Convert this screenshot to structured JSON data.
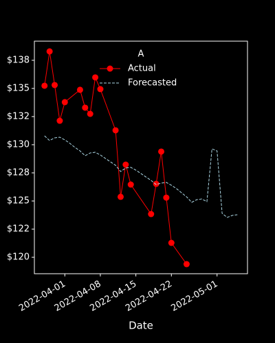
{
  "chart_data": {
    "type": "line",
    "x_label": "Date",
    "legend_title": "A",
    "legend": "upper center",
    "xlim": [
      "2022-03-26",
      "2022-05-07"
    ],
    "xticks": [
      "2022-04-01",
      "2022-04-08",
      "2022-04-15",
      "2022-04-22",
      "2022-05-01"
    ],
    "ylim": [
      118.54,
      139.2
    ],
    "yticks": [
      {
        "value": 120,
        "label": "$120"
      },
      {
        "value": 122.5,
        "label": "$122"
      },
      {
        "value": 125,
        "label": "$125"
      },
      {
        "value": 127.5,
        "label": "$128"
      },
      {
        "value": 130,
        "label": "$130"
      },
      {
        "value": 132.5,
        "label": "$132"
      },
      {
        "value": 135,
        "label": "$135"
      },
      {
        "value": 137.5,
        "label": "$138"
      }
    ],
    "series": [
      {
        "name": "Actual",
        "color": "#ff0000",
        "marker": true,
        "dashed": false,
        "x": [
          "2022-03-28",
          "2022-03-29",
          "2022-03-30",
          "2022-03-31",
          "2022-04-01",
          "2022-04-04",
          "2022-04-05",
          "2022-04-06",
          "2022-04-07",
          "2022-04-08",
          "2022-04-11",
          "2022-04-12",
          "2022-04-13",
          "2022-04-14",
          "2022-04-18",
          "2022-04-19",
          "2022-04-20",
          "2022-04-21",
          "2022-04-22",
          "2022-04-25"
        ],
        "values": [
          135.24,
          138.29,
          135.3,
          132.13,
          133.78,
          134.88,
          133.29,
          132.74,
          135.98,
          134.94,
          131.28,
          125.37,
          128.23,
          126.46,
          123.84,
          126.52,
          129.39,
          125.3,
          121.28,
          119.39
        ]
      },
      {
        "name": "Forecasted",
        "color": "#add8e6",
        "marker": false,
        "dashed": true,
        "x": [
          "2022-03-28",
          "2022-03-29",
          "2022-03-30",
          "2022-03-31",
          "2022-04-01",
          "2022-04-02",
          "2022-04-03",
          "2022-04-04",
          "2022-04-05",
          "2022-04-06",
          "2022-04-07",
          "2022-04-08",
          "2022-04-09",
          "2022-04-10",
          "2022-04-11",
          "2022-04-12",
          "2022-04-13",
          "2022-04-14",
          "2022-04-15",
          "2022-04-16",
          "2022-04-17",
          "2022-04-18",
          "2022-04-19",
          "2022-04-20",
          "2022-04-21",
          "2022-04-22",
          "2022-04-23",
          "2022-04-24",
          "2022-04-25",
          "2022-04-26",
          "2022-04-27",
          "2022-04-28",
          "2022-04-29",
          "2022-04-30",
          "2022-05-01",
          "2022-05-02",
          "2022-05-03",
          "2022-05-04",
          "2022-05-05"
        ],
        "values": [
          130.79,
          130.37,
          130.61,
          130.67,
          130.43,
          130.12,
          129.76,
          129.45,
          129.02,
          129.27,
          129.33,
          129.09,
          128.78,
          128.48,
          128.17,
          127.62,
          127.93,
          127.99,
          127.74,
          127.44,
          127.13,
          126.83,
          126.46,
          126.59,
          126.65,
          126.4,
          126.1,
          125.73,
          125.37,
          124.88,
          125.12,
          125.18,
          124.94,
          129.63,
          129.45,
          123.9,
          123.54,
          123.72,
          123.78
        ]
      }
    ]
  }
}
